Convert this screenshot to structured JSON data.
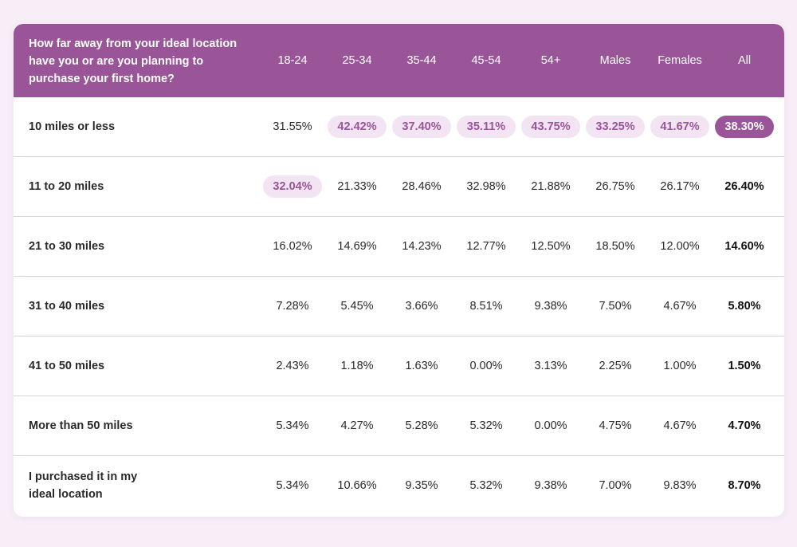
{
  "colors": {
    "accent": "#9a5598",
    "highlight_bg": "#f3e4f3",
    "page_bg": "#f7eef7"
  },
  "table": {
    "question": "How far away from your ideal location have you or are you planning to purchase your first home?",
    "columns": [
      "18-24",
      "25-34",
      "35-44",
      "45-54",
      "54+",
      "Males",
      "Females",
      "All"
    ],
    "rows": [
      {
        "label": "10 miles or less",
        "values": [
          "31.55%",
          "42.42%",
          "37.40%",
          "35.11%",
          "43.75%",
          "33.25%",
          "41.67%",
          "38.30%"
        ],
        "highlight": [
          false,
          true,
          true,
          true,
          true,
          true,
          true,
          true
        ]
      },
      {
        "label": "11 to 20 miles",
        "values": [
          "32.04%",
          "21.33%",
          "28.46%",
          "32.98%",
          "21.88%",
          "26.75%",
          "26.17%",
          "26.40%"
        ],
        "highlight": [
          true,
          false,
          false,
          false,
          false,
          false,
          false,
          false
        ]
      },
      {
        "label": "21 to 30 miles",
        "values": [
          "16.02%",
          "14.69%",
          "14.23%",
          "12.77%",
          "12.50%",
          "18.50%",
          "12.00%",
          "14.60%"
        ],
        "highlight": [
          false,
          false,
          false,
          false,
          false,
          false,
          false,
          false
        ]
      },
      {
        "label": "31 to 40 miles",
        "values": [
          "7.28%",
          "5.45%",
          "3.66%",
          "8.51%",
          "9.38%",
          "7.50%",
          "4.67%",
          "5.80%"
        ],
        "highlight": [
          false,
          false,
          false,
          false,
          false,
          false,
          false,
          false
        ]
      },
      {
        "label": "41 to 50 miles",
        "values": [
          "2.43%",
          "1.18%",
          "1.63%",
          "0.00%",
          "3.13%",
          "2.25%",
          "1.00%",
          "1.50%"
        ],
        "highlight": [
          false,
          false,
          false,
          false,
          false,
          false,
          false,
          false
        ]
      },
      {
        "label": "More than 50 miles",
        "values": [
          "5.34%",
          "4.27%",
          "5.28%",
          "5.32%",
          "0.00%",
          "4.75%",
          "4.67%",
          "4.70%"
        ],
        "highlight": [
          false,
          false,
          false,
          false,
          false,
          false,
          false,
          false
        ]
      },
      {
        "label": "I purchased it in my ideal location",
        "values": [
          "5.34%",
          "10.66%",
          "9.35%",
          "5.32%",
          "9.38%",
          "7.00%",
          "9.83%",
          "8.70%"
        ],
        "highlight": [
          false,
          false,
          false,
          false,
          false,
          false,
          false,
          false
        ]
      }
    ]
  },
  "chart_data": {
    "type": "table",
    "title": "How far away from your ideal location have you or are you planning to purchase your first home?",
    "categories": [
      "10 miles or less",
      "11 to 20 miles",
      "21 to 30 miles",
      "31 to 40 miles",
      "41 to 50 miles",
      "More than 50 miles",
      "I purchased it in my ideal location"
    ],
    "series": [
      {
        "name": "18-24",
        "values": [
          31.55,
          32.04,
          16.02,
          7.28,
          2.43,
          5.34,
          5.34
        ]
      },
      {
        "name": "25-34",
        "values": [
          42.42,
          21.33,
          14.69,
          5.45,
          1.18,
          4.27,
          10.66
        ]
      },
      {
        "name": "35-44",
        "values": [
          37.4,
          28.46,
          14.23,
          3.66,
          1.63,
          5.28,
          9.35
        ]
      },
      {
        "name": "45-54",
        "values": [
          35.11,
          32.98,
          12.77,
          8.51,
          0.0,
          5.32,
          5.32
        ]
      },
      {
        "name": "54+",
        "values": [
          43.75,
          21.88,
          12.5,
          9.38,
          3.13,
          0.0,
          9.38
        ]
      },
      {
        "name": "Males",
        "values": [
          33.25,
          26.75,
          18.5,
          7.5,
          2.25,
          4.75,
          7.0
        ]
      },
      {
        "name": "Females",
        "values": [
          41.67,
          26.17,
          12.0,
          4.67,
          1.0,
          4.67,
          9.83
        ]
      },
      {
        "name": "All",
        "values": [
          38.3,
          26.4,
          14.6,
          5.8,
          1.5,
          4.7,
          8.7
        ]
      }
    ]
  }
}
